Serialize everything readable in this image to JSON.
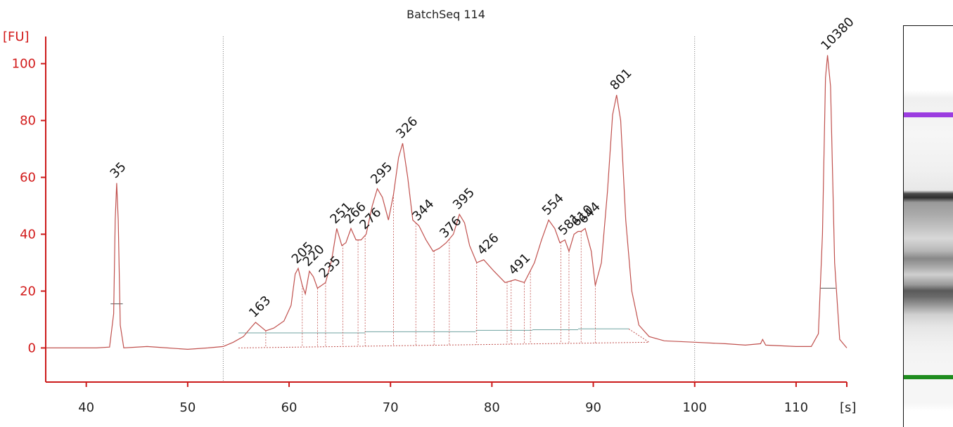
{
  "chart_data": {
    "type": "line",
    "title": "BatchSeq 114",
    "ylabel": "[FU]",
    "xlabel": "[s]",
    "xlim": [
      36,
      115
    ],
    "ylim": [
      -12,
      113
    ],
    "x_ticks": [
      40,
      50,
      60,
      70,
      80,
      90,
      100,
      110
    ],
    "y_ticks": [
      0,
      20,
      40,
      60,
      80,
      100
    ],
    "vertical_markers_x": [
      53.5,
      100
    ],
    "series": [
      {
        "points": [
          [
            36,
            0
          ],
          [
            41,
            0
          ],
          [
            42.3,
            0.3
          ],
          [
            42.7,
            12
          ],
          [
            42.85,
            45
          ],
          [
            43.0,
            58
          ],
          [
            43.15,
            45
          ],
          [
            43.35,
            8
          ],
          [
            43.7,
            0
          ],
          [
            46,
            0.5
          ],
          [
            48,
            0
          ],
          [
            50,
            -0.5
          ],
          [
            52,
            0
          ],
          [
            53.5,
            0.5
          ],
          [
            54.5,
            2
          ],
          [
            55.5,
            4
          ],
          [
            56.2,
            7
          ],
          [
            56.7,
            9
          ],
          [
            57.2,
            7.5
          ],
          [
            57.7,
            6
          ],
          [
            58.5,
            7
          ],
          [
            59.5,
            9.5
          ],
          [
            60.2,
            15
          ],
          [
            60.6,
            26
          ],
          [
            60.9,
            28
          ],
          [
            61.3,
            22
          ],
          [
            61.6,
            19
          ],
          [
            62,
            27
          ],
          [
            62.4,
            25
          ],
          [
            62.8,
            21
          ],
          [
            63.2,
            22
          ],
          [
            63.6,
            23
          ],
          [
            64.2,
            31
          ],
          [
            64.7,
            42
          ],
          [
            65.2,
            36
          ],
          [
            65.6,
            37
          ],
          [
            66.1,
            42
          ],
          [
            66.6,
            38
          ],
          [
            67.1,
            38
          ],
          [
            67.6,
            40
          ],
          [
            68.2,
            50
          ],
          [
            68.7,
            56
          ],
          [
            69.2,
            53
          ],
          [
            69.8,
            45
          ],
          [
            70.3,
            54
          ],
          [
            70.8,
            67
          ],
          [
            71.2,
            72
          ],
          [
            71.7,
            60
          ],
          [
            72.2,
            45
          ],
          [
            72.8,
            43
          ],
          [
            73.5,
            38
          ],
          [
            74.2,
            34
          ],
          [
            74.8,
            35
          ],
          [
            75.5,
            37
          ],
          [
            76.2,
            40
          ],
          [
            76.8,
            47
          ],
          [
            77.3,
            44
          ],
          [
            77.8,
            36
          ],
          [
            78.5,
            30
          ],
          [
            79.2,
            31
          ],
          [
            80.2,
            27
          ],
          [
            81.3,
            23
          ],
          [
            82.3,
            24
          ],
          [
            83.2,
            23
          ],
          [
            84.2,
            30
          ],
          [
            84.9,
            38
          ],
          [
            85.6,
            45
          ],
          [
            86.2,
            42
          ],
          [
            86.7,
            37
          ],
          [
            87.2,
            38
          ],
          [
            87.6,
            34
          ],
          [
            88.1,
            40
          ],
          [
            88.5,
            41
          ],
          [
            88.8,
            41
          ],
          [
            89.2,
            42
          ],
          [
            89.8,
            34
          ],
          [
            90.2,
            22
          ],
          [
            90.8,
            30
          ],
          [
            91.4,
            55
          ],
          [
            91.9,
            82
          ],
          [
            92.3,
            89
          ],
          [
            92.7,
            80
          ],
          [
            93.2,
            45
          ],
          [
            93.8,
            20
          ],
          [
            94.5,
            8
          ],
          [
            95.5,
            4
          ],
          [
            97,
            2.5
          ],
          [
            100,
            2
          ],
          [
            103,
            1.5
          ],
          [
            105,
            1
          ],
          [
            106.5,
            1.5
          ],
          [
            106.7,
            3
          ],
          [
            107,
            1
          ],
          [
            110,
            0.5
          ],
          [
            111.5,
            0.5
          ],
          [
            112.2,
            5
          ],
          [
            112.6,
            40
          ],
          [
            112.9,
            95
          ],
          [
            113.1,
            103
          ],
          [
            113.4,
            92
          ],
          [
            113.8,
            30
          ],
          [
            114.3,
            3
          ],
          [
            115,
            0
          ]
        ]
      }
    ],
    "peaks": [
      {
        "x": 43.0,
        "y": 58,
        "label": "35",
        "color": "#1e8c1e"
      },
      {
        "x": 56.7,
        "y": 9,
        "label": "163"
      },
      {
        "x": 60.9,
        "y": 28,
        "label": "205"
      },
      {
        "x": 62.0,
        "y": 27,
        "label": "220"
      },
      {
        "x": 63.6,
        "y": 23,
        "label": "235"
      },
      {
        "x": 64.7,
        "y": 42,
        "label": "251"
      },
      {
        "x": 66.1,
        "y": 42,
        "label": "266"
      },
      {
        "x": 67.6,
        "y": 40,
        "label": "276"
      },
      {
        "x": 68.7,
        "y": 56,
        "label": "295"
      },
      {
        "x": 71.2,
        "y": 72,
        "label": "326"
      },
      {
        "x": 72.8,
        "y": 43,
        "label": "344"
      },
      {
        "x": 75.5,
        "y": 37,
        "label": "376"
      },
      {
        "x": 76.8,
        "y": 47,
        "label": "395"
      },
      {
        "x": 79.2,
        "y": 31,
        "label": "426"
      },
      {
        "x": 82.3,
        "y": 24,
        "label": "491"
      },
      {
        "x": 85.6,
        "y": 45,
        "label": "554"
      },
      {
        "x": 87.2,
        "y": 38,
        "label": "581"
      },
      {
        "x": 88.5,
        "y": 41,
        "label": "610"
      },
      {
        "x": 89.2,
        "y": 42,
        "label": "644"
      },
      {
        "x": 92.3,
        "y": 89,
        "label": "801"
      },
      {
        "x": 113.1,
        "y": 103,
        "label": "10380",
        "color": "#9b3ce0"
      }
    ]
  },
  "colors": {
    "axis": "#cc1a1a",
    "trace": "#c0504d",
    "baseline": "#6fa3a0",
    "lower_marker": "#1e8c1e",
    "upper_marker": "#9b3ce0"
  }
}
